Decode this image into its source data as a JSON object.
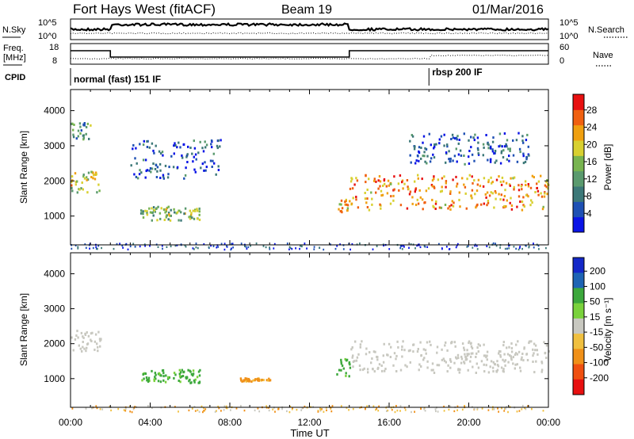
{
  "header": {
    "title": "Fort Hays West (fitACF)",
    "beam": "Beam 19",
    "date": "01/Mar/2016"
  },
  "noise_panel": {
    "left_label": "N.Sky",
    "right_label": "N.Search",
    "left_ticks": [
      "10^5",
      "10^0"
    ],
    "right_ticks": [
      "10^5",
      "10^0"
    ]
  },
  "freq_panel": {
    "left_label_1": "Freq.",
    "left_label_2": "[MHz]",
    "left_ticks": [
      "18",
      "8"
    ],
    "right_label": "Nave",
    "right_ticks": [
      "60",
      "0"
    ]
  },
  "cpid": {
    "label": "CPID",
    "modes": [
      {
        "name": "normal (fast) 151 IF",
        "start_hour": 0
      },
      {
        "name": "rbsp 200 IF",
        "start_hour": 18
      }
    ]
  },
  "time_axis": {
    "label": "Time UT",
    "ticks": [
      "00:00",
      "04:00",
      "08:00",
      "12:00",
      "16:00",
      "20:00",
      "00:00"
    ]
  },
  "chart_data": [
    {
      "type": "heatmap",
      "title": "Power",
      "ylabel": "Slant Range [km]",
      "xlabel": "Time UT",
      "xlim_hours": [
        0,
        24
      ],
      "ylim": [
        180,
        4600
      ],
      "yticks": [
        1000,
        2000,
        3000,
        4000
      ],
      "colorbar": {
        "label": "Power [dB]",
        "ticks": [
          4,
          8,
          12,
          16,
          20,
          24,
          28
        ],
        "colors": [
          "#0a14e6",
          "#1e50b4",
          "#3c7878",
          "#5a9a6e",
          "#78b450",
          "#d8d030",
          "#f0a010",
          "#f06010",
          "#e81010"
        ]
      },
      "regions": [
        {
          "t": [
            0,
            1.5
          ],
          "r": [
            1700,
            2300
          ],
          "level": 18
        },
        {
          "t": [
            0,
            1.0
          ],
          "r": [
            3200,
            3700
          ],
          "level": 11
        },
        {
          "t": [
            3.5,
            6.5
          ],
          "r": [
            900,
            1300
          ],
          "level": 14
        },
        {
          "t": [
            3.0,
            7.5
          ],
          "r": [
            2100,
            3200
          ],
          "level": 6
        },
        {
          "t": [
            13.3,
            14.0
          ],
          "r": [
            1100,
            1500
          ],
          "level": 20
        },
        {
          "t": [
            14.0,
            24
          ],
          "r": [
            1200,
            2200
          ],
          "level": 22
        },
        {
          "t": [
            17,
            23
          ],
          "r": [
            2500,
            3400
          ],
          "level": 6
        }
      ]
    },
    {
      "type": "heatmap",
      "title": "Velocity",
      "ylabel": "Slant Range [km]",
      "xlabel": "Time UT",
      "xlim_hours": [
        0,
        24
      ],
      "ylim": [
        180,
        4600
      ],
      "yticks": [
        1000,
        2000,
        3000,
        4000
      ],
      "colorbar": {
        "label": "Velocity [m s⁻¹]",
        "ticks": [
          200,
          100,
          50,
          15,
          -15,
          -50,
          -100,
          -200
        ],
        "colors": [
          "#1428c8",
          "#1e64b4",
          "#3ca83c",
          "#7ad23c",
          "#c8c8c0",
          "#f0c040",
          "#f09018",
          "#f05010",
          "#e81010"
        ]
      },
      "regions": [
        {
          "t": [
            0,
            1.5
          ],
          "r": [
            1800,
            2400
          ],
          "velocity": 0
        },
        {
          "t": [
            3.5,
            6.5
          ],
          "r": [
            900,
            1300
          ],
          "velocity": 60
        },
        {
          "t": [
            8.5,
            10
          ],
          "r": [
            950,
            1050
          ],
          "velocity": -60
        },
        {
          "t": [
            13.3,
            14.0
          ],
          "r": [
            1100,
            1600
          ],
          "velocity": 60
        },
        {
          "t": [
            14.0,
            24
          ],
          "r": [
            1200,
            2100
          ],
          "velocity": 0
        }
      ]
    }
  ]
}
